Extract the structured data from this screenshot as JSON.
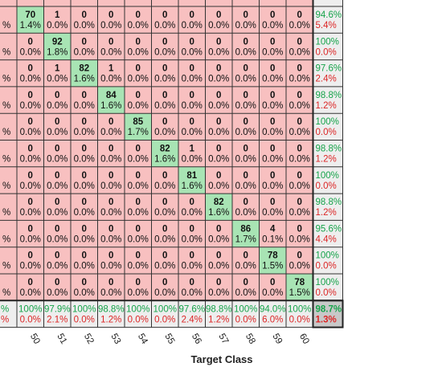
{
  "chart_data": {
    "type": "heatmap",
    "xlabel": "Target Class",
    "ylabel": "",
    "x_tick_labels": [
      "50",
      "51",
      "52",
      "53",
      "54",
      "55",
      "56",
      "57",
      "58",
      "59",
      "60"
    ],
    "row_left_fragment": "%",
    "counts": [
      [
        70,
        1,
        0,
        0,
        0,
        0,
        0,
        0,
        0,
        0,
        0
      ],
      [
        0,
        92,
        0,
        0,
        0,
        0,
        0,
        0,
        0,
        0,
        0
      ],
      [
        0,
        1,
        82,
        1,
        0,
        0,
        0,
        0,
        0,
        0,
        0
      ],
      [
        0,
        0,
        0,
        84,
        0,
        0,
        0,
        0,
        0,
        0,
        0
      ],
      [
        0,
        0,
        0,
        0,
        85,
        0,
        0,
        0,
        0,
        0,
        0
      ],
      [
        0,
        0,
        0,
        0,
        0,
        82,
        1,
        0,
        0,
        0,
        0
      ],
      [
        0,
        0,
        0,
        0,
        0,
        0,
        81,
        0,
        0,
        0,
        0
      ],
      [
        0,
        0,
        0,
        0,
        0,
        0,
        0,
        82,
        0,
        0,
        0
      ],
      [
        0,
        0,
        0,
        0,
        0,
        0,
        0,
        0,
        86,
        4,
        0
      ],
      [
        0,
        0,
        0,
        0,
        0,
        0,
        0,
        0,
        0,
        78,
        0
      ],
      [
        0,
        0,
        0,
        0,
        0,
        0,
        0,
        0,
        0,
        0,
        78
      ]
    ],
    "percents": [
      [
        "1.4%",
        "0.0%",
        "0.0%",
        "0.0%",
        "0.0%",
        "0.0%",
        "0.0%",
        "0.0%",
        "0.0%",
        "0.0%",
        "0.0%"
      ],
      [
        "0.0%",
        "1.8%",
        "0.0%",
        "0.0%",
        "0.0%",
        "0.0%",
        "0.0%",
        "0.0%",
        "0.0%",
        "0.0%",
        "0.0%"
      ],
      [
        "0.0%",
        "0.0%",
        "1.6%",
        "0.0%",
        "0.0%",
        "0.0%",
        "0.0%",
        "0.0%",
        "0.0%",
        "0.0%",
        "0.0%"
      ],
      [
        "0.0%",
        "0.0%",
        "0.0%",
        "1.6%",
        "0.0%",
        "0.0%",
        "0.0%",
        "0.0%",
        "0.0%",
        "0.0%",
        "0.0%"
      ],
      [
        "0.0%",
        "0.0%",
        "0.0%",
        "0.0%",
        "1.7%",
        "0.0%",
        "0.0%",
        "0.0%",
        "0.0%",
        "0.0%",
        "0.0%"
      ],
      [
        "0.0%",
        "0.0%",
        "0.0%",
        "0.0%",
        "0.0%",
        "1.6%",
        "0.0%",
        "0.0%",
        "0.0%",
        "0.0%",
        "0.0%"
      ],
      [
        "0.0%",
        "0.0%",
        "0.0%",
        "0.0%",
        "0.0%",
        "0.0%",
        "1.6%",
        "0.0%",
        "0.0%",
        "0.0%",
        "0.0%"
      ],
      [
        "0.0%",
        "0.0%",
        "0.0%",
        "0.0%",
        "0.0%",
        "0.0%",
        "0.0%",
        "1.6%",
        "0.0%",
        "0.0%",
        "0.0%"
      ],
      [
        "0.0%",
        "0.0%",
        "0.0%",
        "0.0%",
        "0.0%",
        "0.0%",
        "0.0%",
        "0.0%",
        "1.7%",
        "0.1%",
        "0.0%"
      ],
      [
        "0.0%",
        "0.0%",
        "0.0%",
        "0.0%",
        "0.0%",
        "0.0%",
        "0.0%",
        "0.0%",
        "0.0%",
        "1.5%",
        "0.0%"
      ],
      [
        "0.0%",
        "0.0%",
        "0.0%",
        "0.0%",
        "0.0%",
        "0.0%",
        "0.0%",
        "0.0%",
        "0.0%",
        "0.0%",
        "1.5%"
      ]
    ],
    "row_summary": [
      [
        "94.6%",
        "5.4%"
      ],
      [
        "100%",
        "0.0%"
      ],
      [
        "97.6%",
        "2.4%"
      ],
      [
        "98.8%",
        "1.2%"
      ],
      [
        "100%",
        "0.0%"
      ],
      [
        "98.8%",
        "1.2%"
      ],
      [
        "100%",
        "0.0%"
      ],
      [
        "98.8%",
        "1.2%"
      ],
      [
        "95.6%",
        "4.4%"
      ],
      [
        "100%",
        "0.0%"
      ],
      [
        "100%",
        "0.0%"
      ]
    ],
    "col_summary_left_fragment": [
      "%",
      "%"
    ],
    "col_summary": [
      [
        "100%",
        "0.0%"
      ],
      [
        "97.9%",
        "2.1%"
      ],
      [
        "100%",
        "0.0%"
      ],
      [
        "98.8%",
        "1.2%"
      ],
      [
        "100%",
        "0.0%"
      ],
      [
        "100%",
        "0.0%"
      ],
      [
        "97.6%",
        "2.4%"
      ],
      [
        "98.8%",
        "1.2%"
      ],
      [
        "100%",
        "0.0%"
      ],
      [
        "94.0%",
        "6.0%"
      ],
      [
        "100%",
        "0.0%"
      ]
    ],
    "overall": [
      "98.7%",
      "1.3%"
    ],
    "colors": {
      "correct": "#a8e4b4",
      "incorrect": "#f8c0c0",
      "summary": "#eeeeee",
      "overall": "#c8c8c8",
      "green_text": "#16a34a",
      "red_text": "#dc2626"
    },
    "grid": true,
    "legend": "none"
  }
}
